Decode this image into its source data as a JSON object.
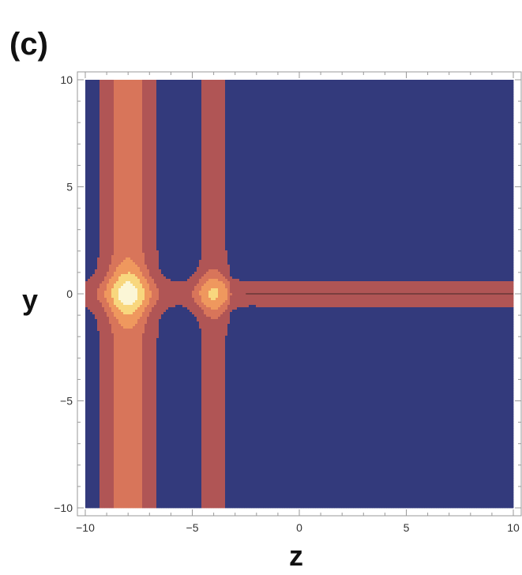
{
  "panel_label": "(c)",
  "colors": {
    "lvl0": "#333a7c",
    "lvl1": "#b05555",
    "lvl2": "#d8755a",
    "lvl3": "#ef985e",
    "lvl4": "#f8d77e",
    "lvl5": "#fbf6d6",
    "contour_line": "#5a3030",
    "frame": "#999999",
    "tick_text": "#333333"
  },
  "chart_data": {
    "type": "heatmap",
    "subtype": "filled contour plot",
    "title": "",
    "xlabel": "z",
    "ylabel": "y",
    "xlim": [
      -10,
      10
    ],
    "ylim": [
      -10,
      10
    ],
    "x_ticks": [
      -10,
      -5,
      0,
      5,
      10
    ],
    "y_ticks": [
      -10,
      -5,
      0,
      5,
      10
    ],
    "x_tick_labels": [
      "−10",
      "−5",
      "0",
      "5",
      "10"
    ],
    "y_tick_labels": [
      "−10",
      "−5",
      "0",
      "5",
      "10"
    ],
    "grid": false,
    "legend": "none",
    "contour_levels": 6,
    "features": {
      "vertical_band_1": {
        "z_center": -8,
        "z_outer_range": [
          -9.3,
          -6.7
        ]
      },
      "vertical_band_2": {
        "z_range": [
          -4.9,
          -3.2
        ]
      },
      "horizontal_band": {
        "y_range": [
          -0.9,
          0.9
        ],
        "z_from": -3.2,
        "z_to": 10
      },
      "peak_1": {
        "z": -8,
        "y": 0
      },
      "peak_2": {
        "z": -4,
        "y": 0
      }
    }
  }
}
